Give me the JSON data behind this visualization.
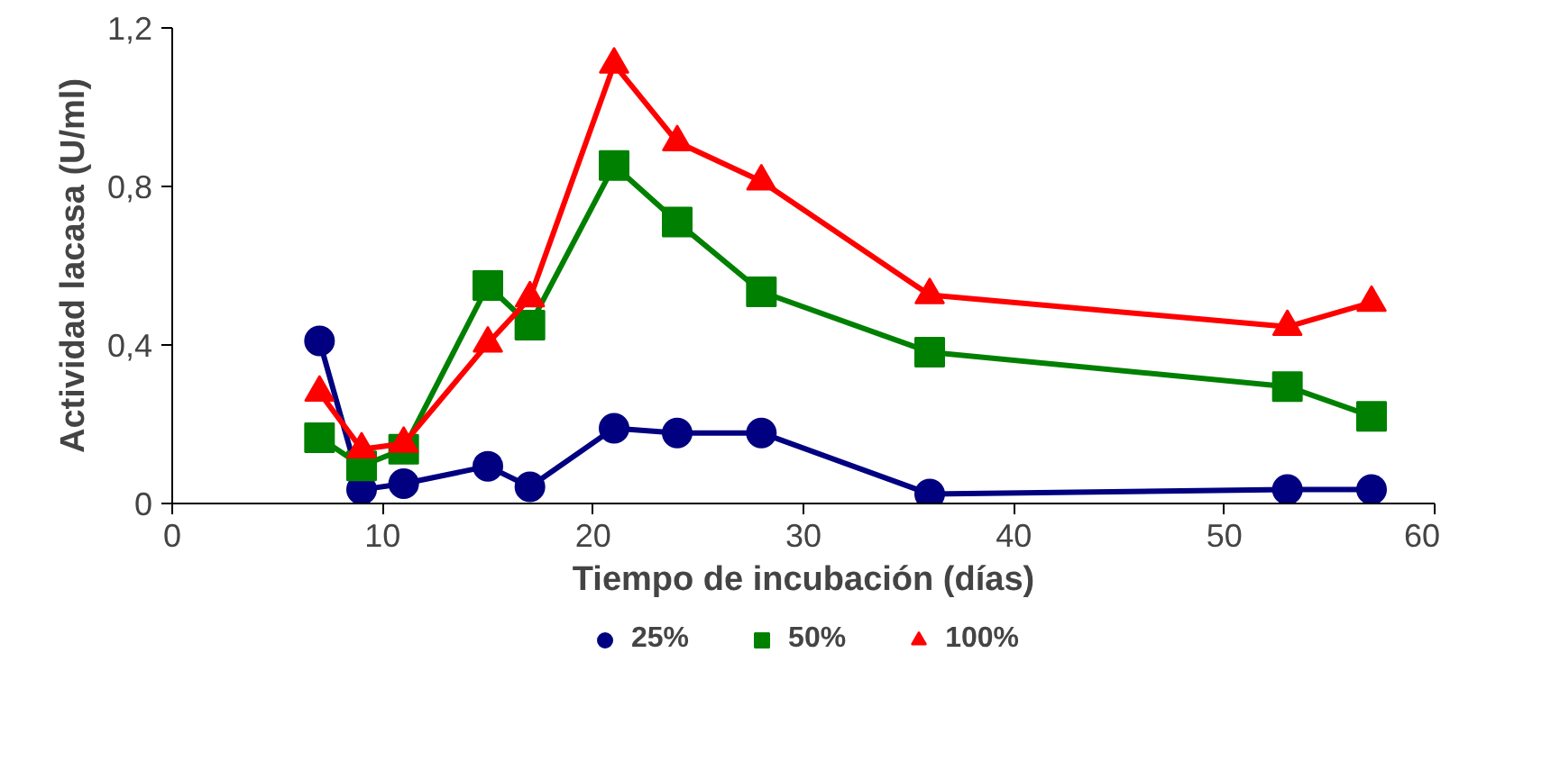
{
  "chart_data": {
    "type": "line",
    "xlabel": "Tiempo de incubación (días)",
    "ylabel": "Actividad lacasa (U/ml)",
    "xlim": [
      0,
      60
    ],
    "ylim": [
      0,
      1.2
    ],
    "xticks": [
      0,
      10,
      20,
      30,
      40,
      50,
      60
    ],
    "yticks": [
      0,
      {
        "value": 0.4,
        "label": "0,4"
      },
      {
        "value": 0.8,
        "label": "0,8"
      },
      {
        "value": 1.2,
        "label": "1,2"
      }
    ],
    "x": [
      7,
      9,
      11,
      15,
      17,
      21,
      24,
      28,
      36,
      53,
      57
    ],
    "grid": false,
    "legend": "bottom",
    "line_style": "solid",
    "series": [
      {
        "name": "25%",
        "color": "#000080",
        "marker": "circle",
        "values": [
          0.41,
          0.035,
          0.05,
          0.094,
          0.042,
          0.19,
          0.178,
          0.178,
          0.024,
          0.035,
          0.035
        ]
      },
      {
        "name": "50%",
        "color": "#008000",
        "marker": "square",
        "values": [
          0.166,
          0.095,
          0.137,
          0.55,
          0.45,
          0.853,
          0.71,
          0.534,
          0.382,
          0.295,
          0.22
        ]
      },
      {
        "name": "100%",
        "color": "#ff0000",
        "marker": "triangle",
        "values": [
          0.28,
          0.137,
          0.151,
          0.404,
          0.518,
          1.108,
          0.912,
          0.813,
          0.526,
          0.446,
          0.507
        ]
      }
    ]
  }
}
